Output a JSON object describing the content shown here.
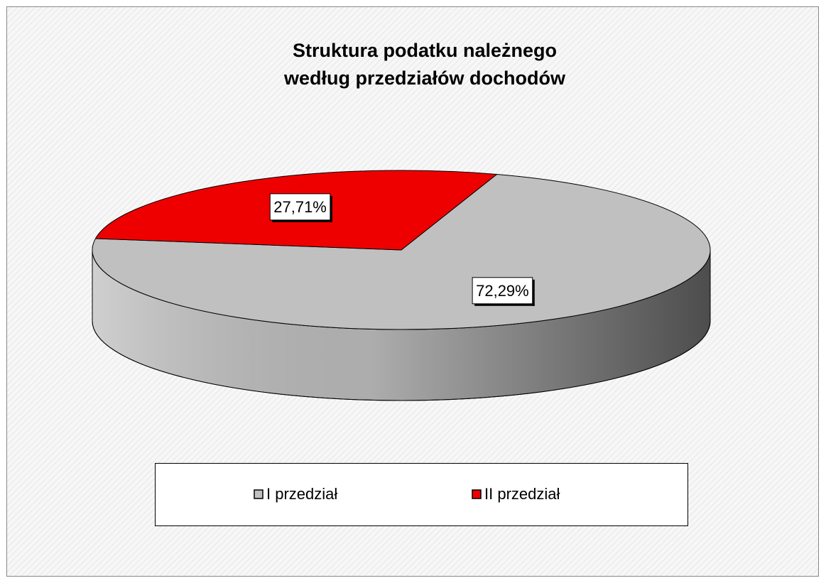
{
  "chart_data": {
    "type": "pie",
    "title": [
      "Struktura podatku należnego",
      "według przedziałów dochodów"
    ],
    "categories": [
      "I przedział",
      "II przedział"
    ],
    "values": [
      72.29,
      27.71
    ],
    "value_labels": [
      "72,29%",
      "27,71%"
    ],
    "colors": [
      "#c0c0c0",
      "#ee0000"
    ],
    "legend": "bottom"
  }
}
